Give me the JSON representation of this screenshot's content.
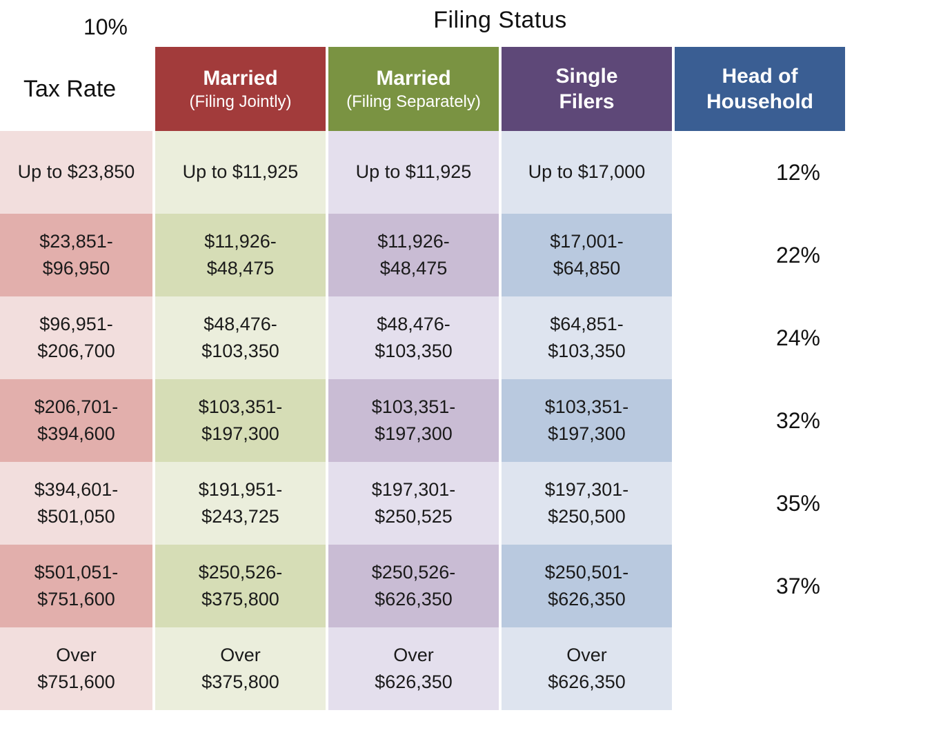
{
  "title": "Filing Status",
  "row_axis_label": "Tax Rate",
  "colors": {
    "header_text": "#ffffff",
    "body_text": "#1a1a1a",
    "columns": [
      {
        "header": "#a23b3b",
        "light": "#f2dedd",
        "dark": "#e2afac"
      },
      {
        "header": "#7a9342",
        "light": "#ebeedc",
        "dark": "#d6ddb6"
      },
      {
        "header": "#5e4878",
        "light": "#e4dfed",
        "dark": "#c9bcd4"
      },
      {
        "header": "#3a5e93",
        "light": "#dee4ef",
        "dark": "#b9c9df"
      }
    ]
  },
  "columns": [
    {
      "label": "Married",
      "sublabel": "(Filing Jointly)"
    },
    {
      "label": "Married",
      "sublabel": "(Filing Separately)"
    },
    {
      "label": "Single\nFilers",
      "sublabel": ""
    },
    {
      "label": "Head of\nHousehold",
      "sublabel": ""
    }
  ],
  "rows": [
    {
      "rate": "10%",
      "cells": [
        "Up to $23,850",
        "Up to $11,925",
        "Up to $11,925",
        "Up to $17,000"
      ]
    },
    {
      "rate": "12%",
      "cells": [
        "$23,851-\n$96,950",
        "$11,926-\n$48,475",
        "$11,926-\n$48,475",
        "$17,001-\n$64,850"
      ]
    },
    {
      "rate": "22%",
      "cells": [
        "$96,951-\n$206,700",
        "$48,476-\n$103,350",
        "$48,476-\n$103,350",
        "$64,851-\n$103,350"
      ]
    },
    {
      "rate": "24%",
      "cells": [
        "$206,701-\n$394,600",
        "$103,351-\n$197,300",
        "$103,351-\n$197,300",
        "$103,351-\n$197,300"
      ]
    },
    {
      "rate": "32%",
      "cells": [
        "$394,601-\n$501,050",
        "$191,951-\n$243,725",
        "$197,301-\n$250,525",
        "$197,301-\n$250,500"
      ]
    },
    {
      "rate": "35%",
      "cells": [
        "$501,051-\n$751,600",
        "$250,526-\n$375,800",
        "$250,526-\n$626,350",
        "$250,501-\n$626,350"
      ]
    },
    {
      "rate": "37%",
      "cells": [
        "Over\n$751,600",
        "Over\n$375,800",
        "Over\n$626,350",
        "Over\n$626,350"
      ]
    }
  ],
  "chart_data": {
    "type": "table",
    "title": "Filing Status",
    "row_header": "Tax Rate",
    "columns": [
      "Married (Filing Jointly)",
      "Married (Filing Separately)",
      "Single Filers",
      "Head of Household"
    ],
    "rows": [
      {
        "tax_rate": "10%",
        "values": [
          "Up to $23,850",
          "Up to $11,925",
          "Up to $11,925",
          "Up to $17,000"
        ]
      },
      {
        "tax_rate": "12%",
        "values": [
          "$23,851-$96,950",
          "$11,926-$48,475",
          "$11,926-$48,475",
          "$17,001-$64,850"
        ]
      },
      {
        "tax_rate": "22%",
        "values": [
          "$96,951-$206,700",
          "$48,476-$103,350",
          "$48,476-$103,350",
          "$64,851-$103,350"
        ]
      },
      {
        "tax_rate": "24%",
        "values": [
          "$206,701-$394,600",
          "$103,351-$197,300",
          "$103,351-$197,300",
          "$103,351-$197,300"
        ]
      },
      {
        "tax_rate": "32%",
        "values": [
          "$394,601-$501,050",
          "$191,951-$243,725",
          "$197,301-$250,525",
          "$197,301-$250,500"
        ]
      },
      {
        "tax_rate": "35%",
        "values": [
          "$501,051-$751,600",
          "$250,526-$375,800",
          "$250,526-$626,350",
          "$250,501-$626,350"
        ]
      },
      {
        "tax_rate": "37%",
        "values": [
          "Over $751,600",
          "Over $375,800",
          "Over $626,350",
          "Over $626,350"
        ]
      }
    ]
  }
}
